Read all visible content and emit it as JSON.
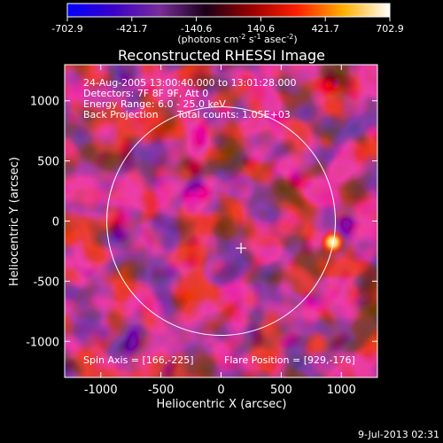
{
  "colorbar": {
    "ticks": [
      "-702.9",
      "-421.7",
      "-140.6",
      "140.6",
      "421.7",
      "702.9"
    ],
    "units_prefix": "(photons cm",
    "units_exp1": "-2",
    "units_mid": " s",
    "units_exp2": "-1",
    "units_mid2": " asec",
    "units_exp3": "-2",
    "units_suffix": ")",
    "colors": [
      "#0000ff",
      "#3a00c8",
      "#7a2c9a",
      "#1a0018",
      "#9a0000",
      "#ff2000",
      "#ffb000",
      "#ffffff"
    ]
  },
  "chart_data": {
    "type": "heatmap",
    "title": "Reconstructed RHESSI Image",
    "xlabel": "Heliocentric X (arcsec)",
    "ylabel": "Heliocentric Y (arcsec)",
    "xlim": [
      -1300,
      1300
    ],
    "ylim": [
      -1300,
      1300
    ],
    "xticks": [
      -1000,
      -500,
      0,
      500,
      1000
    ],
    "yticks": [
      -1000,
      -500,
      0,
      500,
      1000
    ],
    "xtick_labels": [
      "-1000",
      "-500",
      "0",
      "500",
      "1000"
    ],
    "ytick_labels": [
      "-1000",
      "-500",
      "0",
      "500",
      "1000"
    ],
    "solar_radius": 950,
    "sun_center": [
      0,
      0
    ],
    "spin_axis_marker": [
      166,
      -225
    ],
    "flare_position": [
      929,
      -176
    ],
    "value_range": [
      -702.9,
      702.9
    ],
    "annotations": {
      "time": "24-Aug-2005 13:00:40.000 to 13:01:28.000",
      "detectors": "Detectors: 7F 8F 9F, Att 0",
      "energy": "Energy Range: 6.0 - 25.0 keV",
      "method": "Back Projection",
      "counts": "Total counts: 1.05E+03",
      "spin_axis": "Spin Axis = [166,-225]",
      "flare": "Flare Position = [929,-176]"
    }
  },
  "footer": {
    "date": "9-Jul-2013 02:31"
  }
}
